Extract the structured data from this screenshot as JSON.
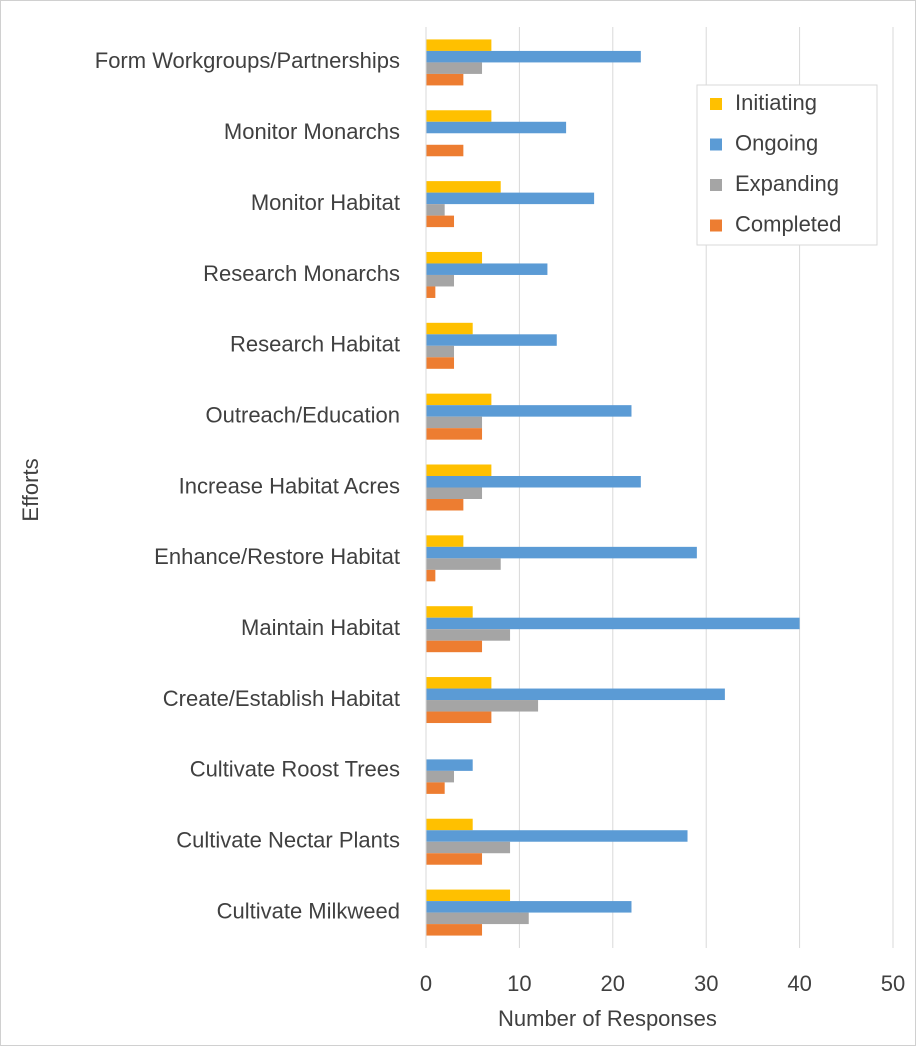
{
  "chart_data": {
    "type": "bar",
    "orientation": "horizontal",
    "x_label": "Number of Responses",
    "y_label": "Efforts",
    "categories": [
      "Form Workgroups/Partnerships",
      "Monitor Monarchs",
      "Monitor Habitat",
      "Research Monarchs",
      "Research Habitat",
      "Outreach/Education",
      "Increase Habitat Acres",
      "Enhance/Restore Habitat",
      "Maintain Habitat",
      "Create/Establish Habitat",
      "Cultivate Roost Trees",
      "Cultivate Nectar Plants",
      "Cultivate Milkweed"
    ],
    "series": [
      {
        "name": "Initiating",
        "color": "#ffc000",
        "values": [
          7,
          7,
          8,
          6,
          5,
          7,
          7,
          4,
          5,
          7,
          0,
          5,
          9
        ]
      },
      {
        "name": "Ongoing",
        "color": "#5b9bd5",
        "values": [
          23,
          15,
          18,
          13,
          14,
          22,
          23,
          29,
          40,
          32,
          5,
          28,
          22
        ]
      },
      {
        "name": "Expanding",
        "color": "#a5a5a5",
        "values": [
          6,
          0,
          2,
          3,
          3,
          6,
          6,
          8,
          9,
          12,
          3,
          9,
          11
        ]
      },
      {
        "name": "Completed",
        "color": "#ed7d31",
        "values": [
          4,
          4,
          3,
          1,
          3,
          6,
          4,
          1,
          6,
          7,
          2,
          6,
          6
        ]
      }
    ],
    "xlim": [
      0,
      50
    ],
    "xticks": [
      0,
      10,
      20,
      30,
      40,
      50
    ],
    "grid": true,
    "legend": "upper right"
  }
}
